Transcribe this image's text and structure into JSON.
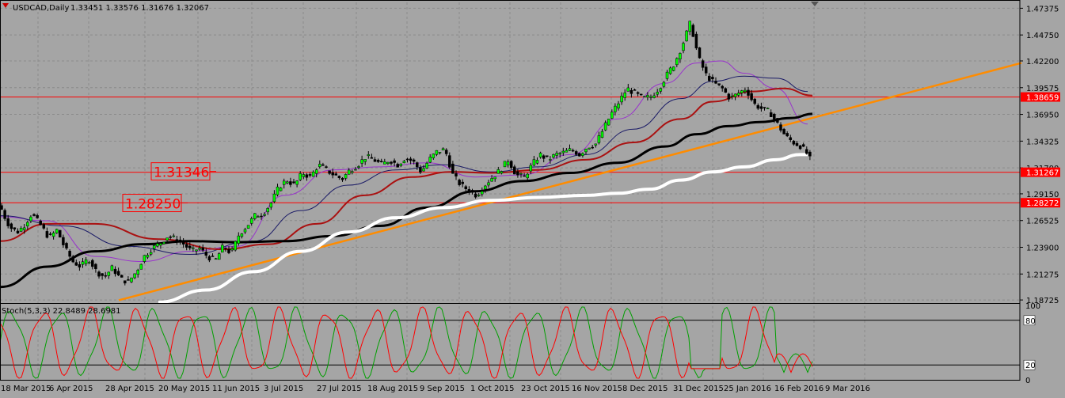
{
  "header": {
    "symbol": "USDCAD,Daily",
    "ohlc": "1.33451 1.33576 1.31676 1.32067"
  },
  "colors": {
    "background": "#a5a5a5",
    "bull_candle": "#00ff00",
    "bear_candle": "#000000",
    "hline": "#ff0000",
    "trendline": "#ff8c00",
    "ma_fast": "#9933cc",
    "ma_mid": "#1a1a66",
    "ma_slow": "#aa1111",
    "ma_long": "#000000",
    "ma_longest": "#ffffff",
    "stoch_main": "#00a000",
    "stoch_signal": "#ff0000"
  },
  "chart_data": [
    {
      "type": "candlestick",
      "symbol": "USDCAD",
      "timeframe": "Daily",
      "ylim": [
        1.185,
        1.4795
      ],
      "y_ticks": [
        "1.47375",
        "1.44750",
        "1.42200",
        "1.39575",
        "1.36950",
        "1.34325",
        "1.31700",
        "1.29150",
        "1.26525",
        "1.23900",
        "1.21275",
        "1.18725"
      ],
      "x_ticks": [
        "18 Mar 2015",
        "6 Apr 2015",
        "28 Apr 2015",
        "20 May 2015",
        "11 Jun 2015",
        "3 Jul 2015",
        "27 Jul 2015",
        "18 Aug 2015",
        "9 Sep 2015",
        "1 Oct 2015",
        "23 Oct 2015",
        "16 Nov 2015",
        "8 Dec 2015",
        "31 Dec 2015",
        "25 Jan 2016",
        "16 Feb 2016",
        "9 Mar 2016"
      ],
      "last_price": "1.32067",
      "close_path": [
        [
          0,
          1.28
        ],
        [
          8,
          1.265
        ],
        [
          14,
          1.258
        ],
        [
          22,
          1.254
        ],
        [
          30,
          1.26
        ],
        [
          40,
          1.272
        ],
        [
          52,
          1.26
        ],
        [
          62,
          1.248
        ],
        [
          72,
          1.256
        ],
        [
          82,
          1.238
        ],
        [
          92,
          1.225
        ],
        [
          102,
          1.22
        ],
        [
          112,
          1.228
        ],
        [
          122,
          1.215
        ],
        [
          132,
          1.21
        ],
        [
          142,
          1.219
        ],
        [
          152,
          1.208
        ],
        [
          162,
          1.205
        ],
        [
          172,
          1.215
        ],
        [
          182,
          1.23
        ],
        [
          192,
          1.238
        ],
        [
          202,
          1.243
        ],
        [
          212,
          1.25
        ],
        [
          222,
          1.247
        ],
        [
          232,
          1.242
        ],
        [
          242,
          1.235
        ],
        [
          252,
          1.238
        ],
        [
          262,
          1.23
        ],
        [
          272,
          1.226
        ],
        [
          282,
          1.24
        ],
        [
          292,
          1.233
        ],
        [
          302,
          1.252
        ],
        [
          312,
          1.26
        ],
        [
          322,
          1.27
        ],
        [
          332,
          1.272
        ],
        [
          342,
          1.282
        ],
        [
          352,
          1.298
        ],
        [
          362,
          1.305
        ],
        [
          372,
          1.3
        ],
        [
          382,
          1.312
        ],
        [
          392,
          1.308
        ],
        [
          402,
          1.32
        ],
        [
          412,
          1.315
        ],
        [
          422,
          1.31
        ],
        [
          432,
          1.306
        ],
        [
          442,
          1.315
        ],
        [
          452,
          1.32
        ],
        [
          462,
          1.328
        ],
        [
          472,
          1.325
        ],
        [
          482,
          1.32
        ],
        [
          492,
          1.325
        ],
        [
          502,
          1.32
        ],
        [
          512,
          1.327
        ],
        [
          522,
          1.323
        ],
        [
          532,
          1.313
        ],
        [
          542,
          1.325
        ],
        [
          552,
          1.333
        ],
        [
          562,
          1.335
        ],
        [
          572,
          1.31
        ],
        [
          582,
          1.3
        ],
        [
          592,
          1.295
        ],
        [
          602,
          1.29
        ],
        [
          612,
          1.3
        ],
        [
          622,
          1.308
        ],
        [
          632,
          1.315
        ],
        [
          642,
          1.325
        ],
        [
          652,
          1.31
        ],
        [
          662,
          1.308
        ],
        [
          672,
          1.32
        ],
        [
          682,
          1.33
        ],
        [
          692,
          1.325
        ],
        [
          702,
          1.33
        ],
        [
          712,
          1.332
        ],
        [
          722,
          1.335
        ],
        [
          732,
          1.33
        ],
        [
          742,
          1.338
        ],
        [
          752,
          1.34
        ],
        [
          762,
          1.355
        ],
        [
          772,
          1.37
        ],
        [
          782,
          1.382
        ],
        [
          792,
          1.395
        ],
        [
          802,
          1.39
        ],
        [
          812,
          1.385
        ],
        [
          822,
          1.387
        ],
        [
          832,
          1.395
        ],
        [
          842,
          1.408
        ],
        [
          852,
          1.42
        ],
        [
          862,
          1.438
        ],
        [
          872,
          1.46
        ],
        [
          882,
          1.425
        ],
        [
          892,
          1.408
        ],
        [
          902,
          1.4
        ],
        [
          912,
          1.395
        ],
        [
          922,
          1.385
        ],
        [
          932,
          1.39
        ],
        [
          942,
          1.395
        ],
        [
          952,
          1.38
        ],
        [
          962,
          1.375
        ],
        [
          972,
          1.372
        ],
        [
          982,
          1.36
        ],
        [
          992,
          1.348
        ],
        [
          1002,
          1.342
        ],
        [
          1012,
          1.338
        ],
        [
          1020,
          1.33
        ],
        [
          1026,
          1.321
        ]
      ],
      "indicators": [
        {
          "kind": "ma_fast",
          "points": [
            [
              0,
              1.269
            ],
            [
              60,
              1.265
            ],
            [
              120,
              1.23
            ],
            [
              180,
              1.225
            ],
            [
              240,
              1.235
            ],
            [
              300,
              1.24
            ],
            [
              360,
              1.29
            ],
            [
              420,
              1.315
            ],
            [
              480,
              1.318
            ],
            [
              540,
              1.322
            ],
            [
              600,
              1.308
            ],
            [
              660,
              1.31
            ],
            [
              720,
              1.33
            ],
            [
              780,
              1.365
            ],
            [
              840,
              1.4
            ],
            [
              880,
              1.42
            ],
            [
              910,
              1.422
            ],
            [
              940,
              1.41
            ],
            [
              980,
              1.395
            ],
            [
              1020,
              1.36
            ]
          ]
        },
        {
          "kind": "ma_mid",
          "points": [
            [
              0,
              1.27
            ],
            [
              80,
              1.26
            ],
            [
              160,
              1.24
            ],
            [
              240,
              1.232
            ],
            [
              320,
              1.245
            ],
            [
              380,
              1.275
            ],
            [
              440,
              1.3
            ],
            [
              500,
              1.315
            ],
            [
              560,
              1.32
            ],
            [
              620,
              1.313
            ],
            [
              680,
              1.318
            ],
            [
              740,
              1.33
            ],
            [
              800,
              1.355
            ],
            [
              860,
              1.385
            ],
            [
              900,
              1.402
            ],
            [
              940,
              1.407
            ],
            [
              980,
              1.405
            ],
            [
              1020,
              1.392
            ]
          ]
        },
        {
          "kind": "ma_slow",
          "points": [
            [
              0,
              1.245
            ],
            [
              60,
              1.262
            ],
            [
              120,
              1.262
            ],
            [
              200,
              1.247
            ],
            [
              280,
              1.237
            ],
            [
              340,
              1.242
            ],
            [
              400,
              1.262
            ],
            [
              460,
              1.29
            ],
            [
              520,
              1.308
            ],
            [
              570,
              1.313
            ],
            [
              620,
              1.312
            ],
            [
              680,
              1.315
            ],
            [
              740,
              1.325
            ],
            [
              800,
              1.342
            ],
            [
              860,
              1.365
            ],
            [
              900,
              1.382
            ],
            [
              950,
              1.392
            ],
            [
              990,
              1.395
            ],
            [
              1026,
              1.388
            ]
          ]
        },
        {
          "kind": "ma_long",
          "points": [
            [
              0,
              1.2
            ],
            [
              60,
              1.22
            ],
            [
              120,
              1.235
            ],
            [
              180,
              1.242
            ],
            [
              240,
              1.245
            ],
            [
              300,
              1.244
            ],
            [
              360,
              1.245
            ],
            [
              420,
              1.25
            ],
            [
              480,
              1.26
            ],
            [
              540,
              1.278
            ],
            [
              600,
              1.294
            ],
            [
              660,
              1.304
            ],
            [
              720,
              1.312
            ],
            [
              780,
              1.322
            ],
            [
              840,
              1.338
            ],
            [
              880,
              1.35
            ],
            [
              920,
              1.358
            ],
            [
              960,
              1.362
            ],
            [
              1000,
              1.366
            ],
            [
              1026,
              1.37
            ]
          ]
        },
        {
          "kind": "ma_longest",
          "points": [
            [
              200,
              1.185
            ],
            [
              260,
              1.197
            ],
            [
              320,
              1.215
            ],
            [
              380,
              1.235
            ],
            [
              440,
              1.254
            ],
            [
              500,
              1.268
            ],
            [
              560,
              1.278
            ],
            [
              620,
              1.285
            ],
            [
              680,
              1.288
            ],
            [
              740,
              1.29
            ],
            [
              780,
              1.292
            ],
            [
              820,
              1.296
            ],
            [
              860,
              1.305
            ],
            [
              900,
              1.313
            ],
            [
              940,
              1.318
            ],
            [
              980,
              1.325
            ],
            [
              1010,
              1.33
            ],
            [
              1020,
              1.33
            ]
          ]
        }
      ],
      "horizontal_lines": [
        {
          "price": 1.38659,
          "label": "1.38659"
        },
        {
          "price": 1.31267,
          "label": "1.31267"
        },
        {
          "price": 1.28272,
          "label": "1.28272"
        }
      ],
      "annotations": [
        {
          "text": "1.31346",
          "price": 1.3135,
          "x": 191
        },
        {
          "text": "1.28250",
          "price": 1.2825,
          "x": 155
        }
      ],
      "trendline": {
        "from": [
          150,
          1.187
        ],
        "to": [
          1290,
          1.42
        ]
      }
    },
    {
      "type": "line",
      "title": "Stoch(5,3,3) 22.8489 28.6981",
      "ylim": [
        0,
        100
      ],
      "levels": [
        "80",
        "20"
      ],
      "axis_labels": [
        "100",
        "80",
        "20",
        "0"
      ],
      "series": [
        {
          "kind": "stoch_main",
          "period": 60,
          "phase": 0
        },
        {
          "kind": "stoch_signal",
          "period": 60,
          "phase": 0.35
        }
      ]
    }
  ]
}
